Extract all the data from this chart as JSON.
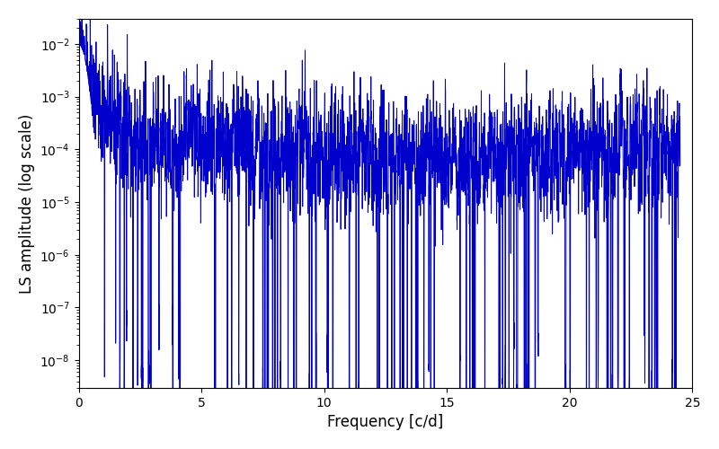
{
  "title": "",
  "xlabel": "Frequency [c/d]",
  "ylabel": "LS amplitude (log scale)",
  "line_color": "#0000cc",
  "line_width": 0.7,
  "xlim": [
    0,
    25
  ],
  "ylim": [
    3e-09,
    0.03
  ],
  "yscale": "log",
  "figsize": [
    8.0,
    5.0
  ],
  "dpi": 100,
  "freq_max": 24.5,
  "num_points": 5000,
  "seed": 137
}
